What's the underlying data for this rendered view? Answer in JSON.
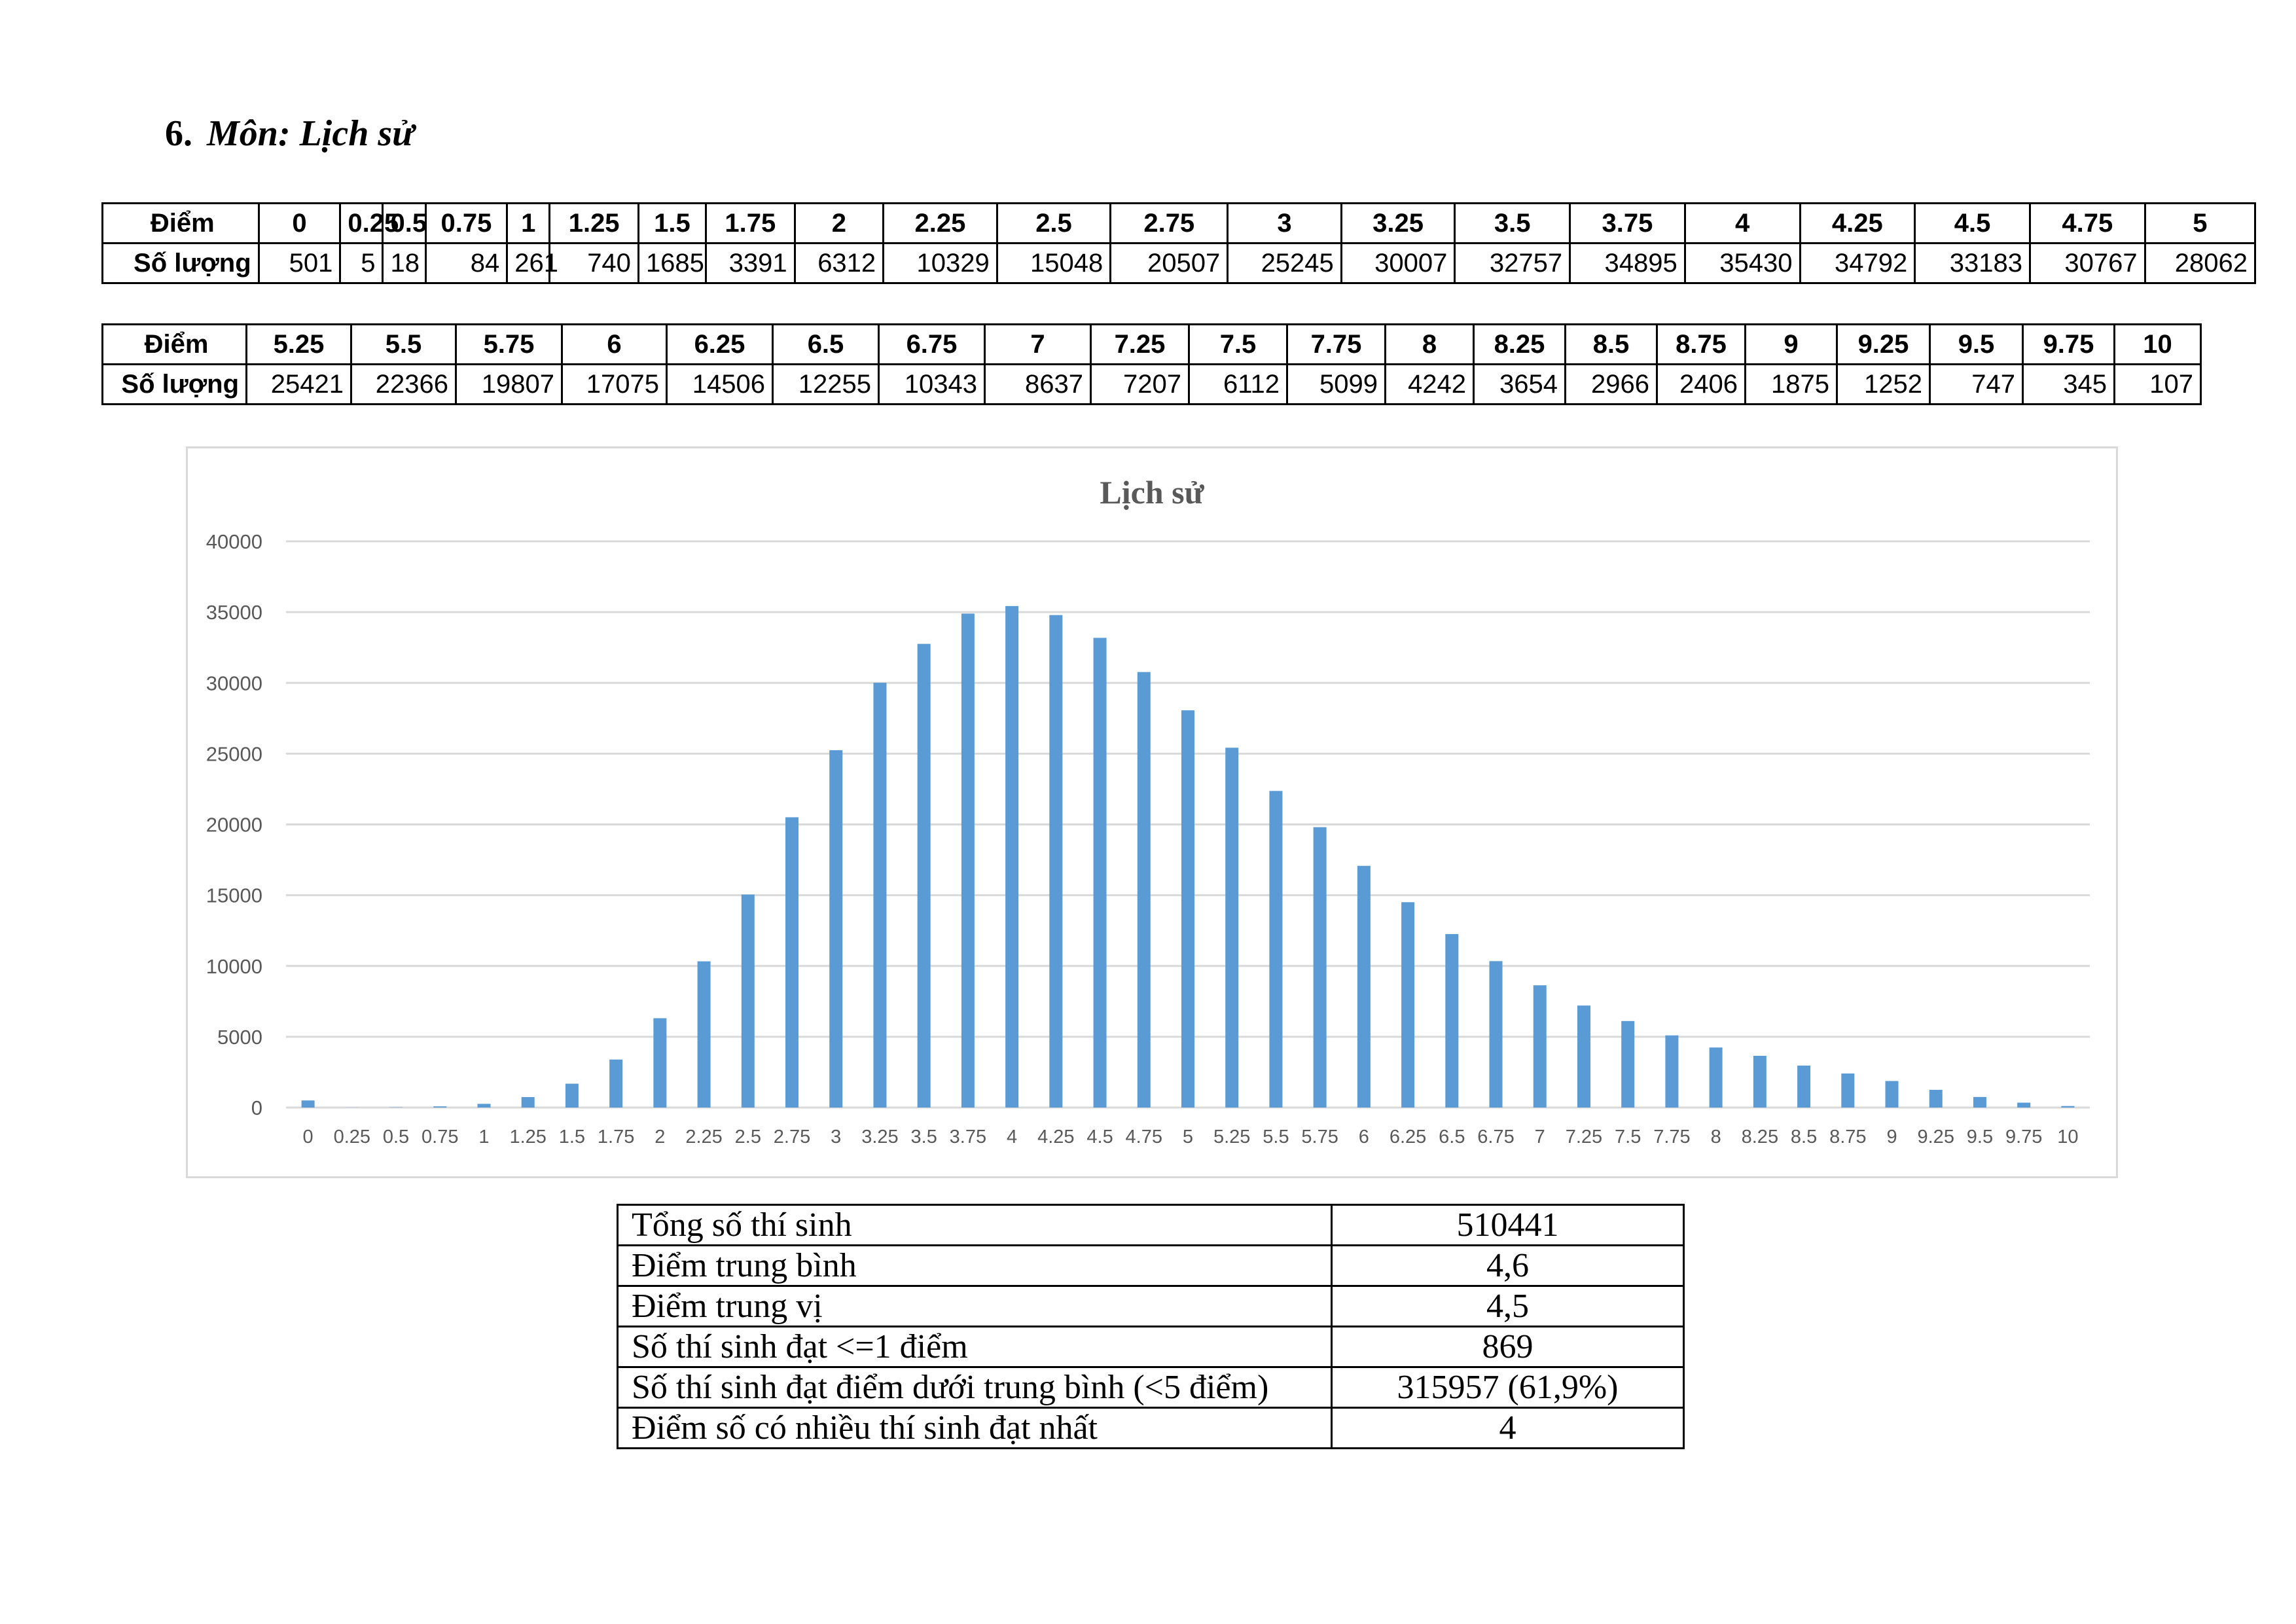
{
  "section": {
    "number": "6.",
    "title": "Môn: Lịch sử"
  },
  "score_tables": [
    {
      "row_label_score": "Điểm",
      "row_label_count": "Số lượng",
      "scores": [
        "0",
        "0.25",
        "0.5",
        "0.75",
        "1",
        "1.25",
        "1.5",
        "1.75",
        "2",
        "2.25",
        "2.5",
        "2.75",
        "3",
        "3.25",
        "3.5",
        "3.75",
        "4",
        "4.25",
        "4.5",
        "4.75",
        "5"
      ],
      "counts": [
        "501",
        "5",
        "18",
        "84",
        "261",
        "740",
        "1685",
        "3391",
        "6312",
        "10329",
        "15048",
        "20507",
        "25245",
        "30007",
        "32757",
        "34895",
        "35430",
        "34792",
        "33183",
        "30767",
        "28062"
      ]
    },
    {
      "row_label_score": "Điểm",
      "row_label_count": "Số lượng",
      "scores": [
        "5.25",
        "5.5",
        "5.75",
        "6",
        "6.25",
        "6.5",
        "6.75",
        "7",
        "7.25",
        "7.5",
        "7.75",
        "8",
        "8.25",
        "8.5",
        "8.75",
        "9",
        "9.25",
        "9.5",
        "9.75",
        "10"
      ],
      "counts": [
        "25421",
        "22366",
        "19807",
        "17075",
        "14506",
        "12255",
        "10343",
        "8637",
        "7207",
        "6112",
        "5099",
        "4242",
        "3654",
        "2966",
        "2406",
        "1875",
        "1252",
        "747",
        "345",
        "107"
      ]
    }
  ],
  "chart_data": {
    "type": "bar",
    "title": "Lịch sử",
    "xlabel": "",
    "ylabel": "",
    "ylim": [
      0,
      40000
    ],
    "yticks": [
      "0",
      "5000",
      "10000",
      "15000",
      "20000",
      "25000",
      "30000",
      "35000",
      "40000"
    ],
    "grid": true,
    "legend": "none",
    "bar_color": "#5b9bd5",
    "grid_color": "#d9d9d9",
    "categories": [
      "0",
      "0.25",
      "0.5",
      "0.75",
      "1",
      "1.25",
      "1.5",
      "1.75",
      "2",
      "2.25",
      "2.5",
      "2.75",
      "3",
      "3.25",
      "3.5",
      "3.75",
      "4",
      "4.25",
      "4.5",
      "4.75",
      "5",
      "5.25",
      "5.5",
      "5.75",
      "6",
      "6.25",
      "6.5",
      "6.75",
      "7",
      "7.25",
      "7.5",
      "7.75",
      "8",
      "8.25",
      "8.5",
      "8.75",
      "9",
      "9.25",
      "9.5",
      "9.75",
      "10"
    ],
    "values": [
      501,
      5,
      18,
      84,
      261,
      740,
      1685,
      3391,
      6312,
      10329,
      15048,
      20507,
      25245,
      30007,
      32757,
      34895,
      35430,
      34792,
      33183,
      30767,
      28062,
      25421,
      22366,
      19807,
      17075,
      14506,
      12255,
      10343,
      8637,
      7207,
      6112,
      5099,
      4242,
      3654,
      2966,
      2406,
      1875,
      1252,
      747,
      345,
      107
    ]
  },
  "summary": [
    {
      "label": "Tổng số thí sinh",
      "value": "510441"
    },
    {
      "label": "Điểm trung bình",
      "value": "4,6"
    },
    {
      "label": "Điểm trung vị",
      "value": "4,5"
    },
    {
      "label": "Số thí sinh đạt <=1 điểm",
      "value": "869"
    },
    {
      "label": "Số thí sinh đạt điểm dưới trung bình (<5 điểm)",
      "value": "315957 (61,9%)"
    },
    {
      "label": "Điểm số có nhiều thí sinh đạt nhất",
      "value": "4"
    }
  ]
}
